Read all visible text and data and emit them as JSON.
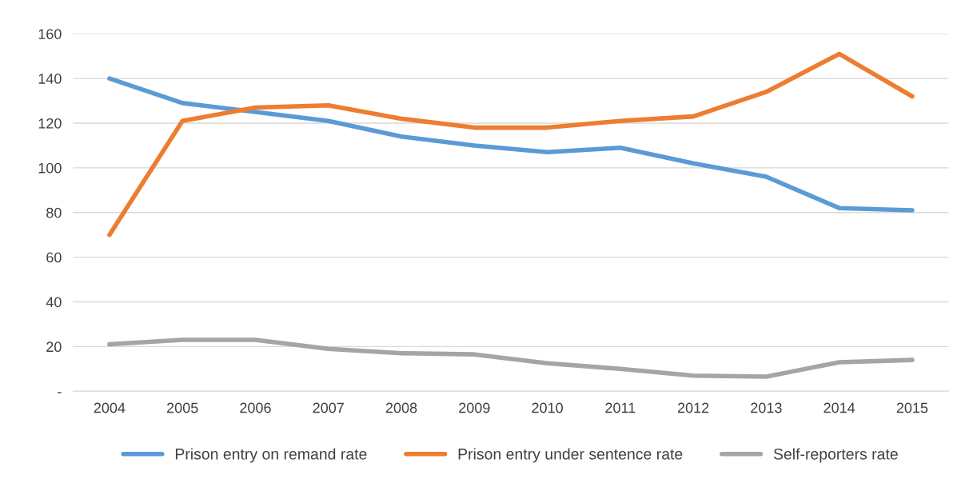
{
  "chart_data": {
    "type": "line",
    "categories": [
      "2004",
      "2005",
      "2006",
      "2007",
      "2008",
      "2009",
      "2010",
      "2011",
      "2012",
      "2013",
      "2014",
      "2015"
    ],
    "series": [
      {
        "name": "Prison entry on remand rate",
        "color": "#5b9bd5",
        "values": [
          140,
          129,
          125,
          121,
          114,
          110,
          107,
          109,
          102,
          96,
          82,
          81
        ]
      },
      {
        "name": "Prison entry under sentence rate",
        "color": "#ed7d31",
        "values": [
          70,
          121,
          127,
          128,
          122,
          118,
          118,
          121,
          123,
          134,
          151,
          132
        ]
      },
      {
        "name": "Self-reporters rate",
        "color": "#a5a5a5",
        "values": [
          21,
          23,
          23,
          19,
          17,
          16.5,
          12.5,
          10,
          7,
          6.5,
          13,
          14
        ]
      }
    ],
    "ylim": [
      0,
      160
    ],
    "yticks": [
      {
        "value": 0,
        "label": "-"
      },
      20,
      40,
      60,
      80,
      100,
      120,
      140,
      160
    ],
    "grid": "y",
    "legend": "bottom",
    "marker": "none",
    "line_style": "solid"
  }
}
